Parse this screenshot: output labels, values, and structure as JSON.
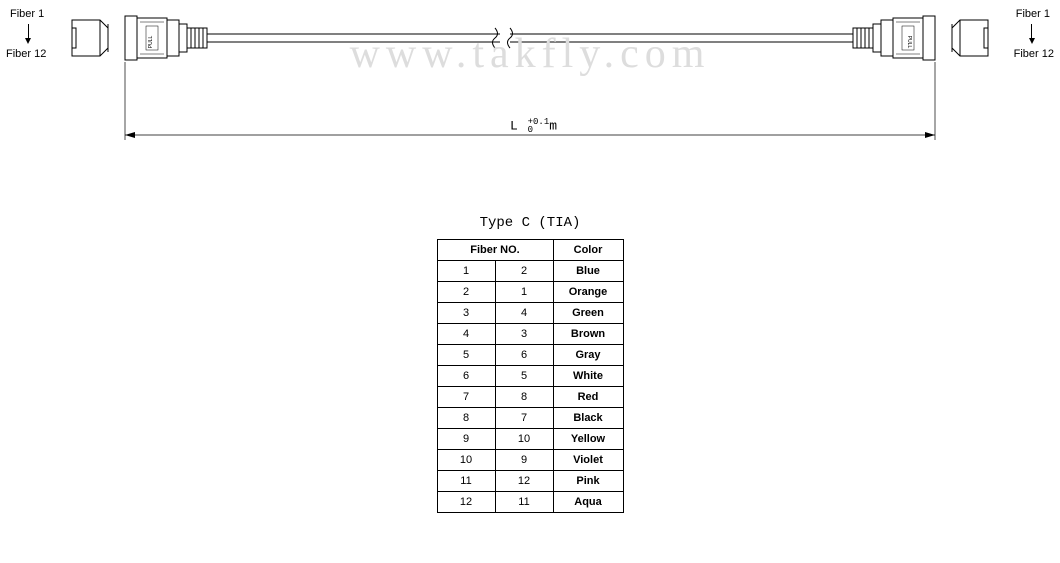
{
  "watermark": "www.takfly.com",
  "labels": {
    "fiber1_left": "Fiber 1",
    "fiber12_left": "Fiber 12",
    "fiber1_right": "Fiber 1",
    "fiber12_right": "Fiber 12",
    "pull": "PULL",
    "length_main": "L",
    "length_tol_top": "+0.1",
    "length_tol_bot": "0",
    "length_unit": "m"
  },
  "table": {
    "title": "Type C (TIA)",
    "header_fiber": "Fiber NO.",
    "header_color": "Color",
    "rows": [
      {
        "a": "1",
        "b": "2",
        "c": "Blue"
      },
      {
        "a": "2",
        "b": "1",
        "c": "Orange"
      },
      {
        "a": "3",
        "b": "4",
        "c": "Green"
      },
      {
        "a": "4",
        "b": "3",
        "c": "Brown"
      },
      {
        "a": "5",
        "b": "6",
        "c": "Gray"
      },
      {
        "a": "6",
        "b": "5",
        "c": "White"
      },
      {
        "a": "7",
        "b": "8",
        "c": "Red"
      },
      {
        "a": "8",
        "b": "7",
        "c": "Black"
      },
      {
        "a": "9",
        "b": "10",
        "c": "Yellow"
      },
      {
        "a": "10",
        "b": "9",
        "c": "Violet"
      },
      {
        "a": "11",
        "b": "12",
        "c": "Pink"
      },
      {
        "a": "12",
        "b": "11",
        "c": "Aqua"
      }
    ]
  },
  "diagram_style": {
    "stroke": "#000000",
    "stroke_width": 1,
    "background": "#ffffff"
  }
}
